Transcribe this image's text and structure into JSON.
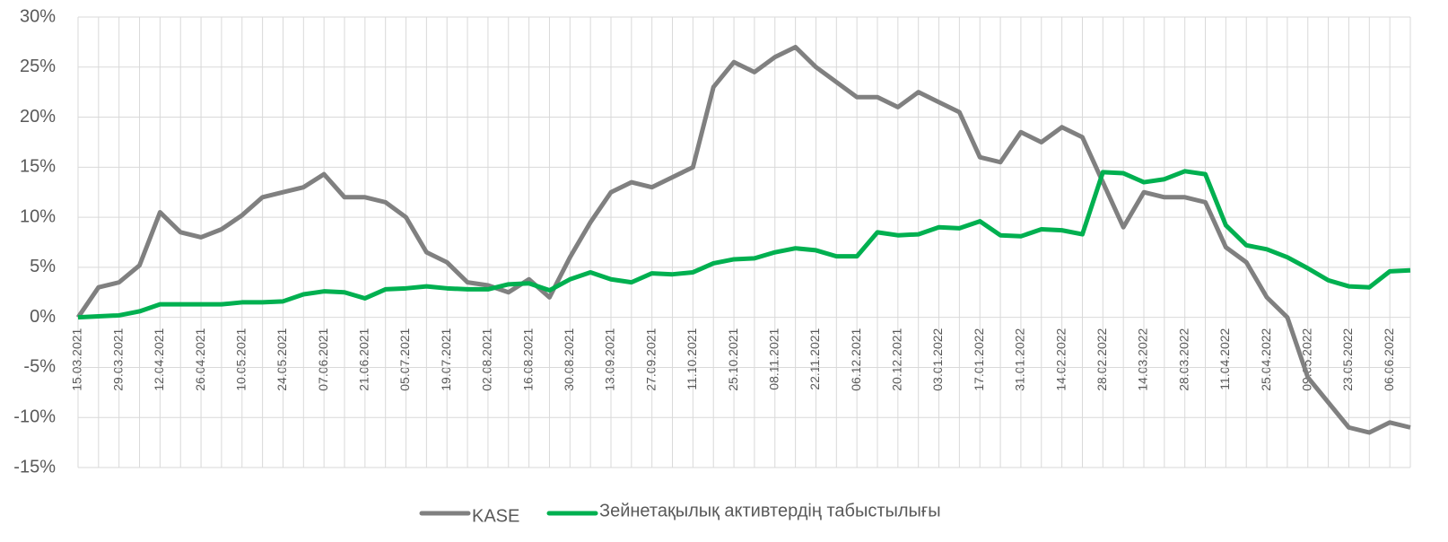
{
  "chart_data": {
    "type": "line",
    "categories": [
      "15.03.2021",
      null,
      "29.03.2021",
      null,
      "12.04.2021",
      null,
      "26.04.2021",
      null,
      "10.05.2021",
      null,
      "24.05.2021",
      null,
      "07.06.2021",
      null,
      "21.06.2021",
      null,
      "05.07.2021",
      null,
      "19.07.2021",
      null,
      "02.08.2021",
      null,
      "16.08.2021",
      null,
      "30.08.2021",
      null,
      "13.09.2021",
      null,
      "27.09.2021",
      null,
      "11.10.2021",
      null,
      "25.10.2021",
      null,
      "08.11.2021",
      null,
      "22.11.2021",
      null,
      "06.12.2021",
      null,
      "20.12.2021",
      null,
      "03.01.2022",
      null,
      "17.01.2022",
      null,
      "31.01.2022",
      null,
      "14.02.2022",
      null,
      "28.02.2022",
      null,
      "14.03.2022",
      null,
      "28.03.2022",
      null,
      "11.04.2022",
      null,
      "25.04.2022",
      null,
      "09.05.2022",
      null,
      "23.05.2022",
      null,
      "06.06.2022",
      null
    ],
    "series": [
      {
        "name": "KASE",
        "color": "#808080",
        "values": [
          0,
          3,
          3.5,
          5.2,
          10.5,
          8.5,
          8,
          8.8,
          10.2,
          12,
          12.5,
          13,
          14.3,
          12,
          12,
          11.5,
          10,
          6.5,
          5.5,
          3.5,
          3.2,
          2.5,
          3.8,
          2,
          6,
          9.5,
          12.5,
          13.5,
          13,
          14,
          15,
          23,
          25.5,
          24.5,
          26,
          27,
          25,
          23.5,
          22,
          22,
          21,
          22.5,
          21.5,
          20.5,
          16,
          15.5,
          18.5,
          17.5,
          19,
          18,
          13.5,
          9,
          12.5,
          12,
          12,
          11.5,
          7,
          5.5,
          2,
          0,
          -6,
          -8.5,
          -11,
          -11.5,
          -10.5,
          -11
        ]
      },
      {
        "name": "Зейнетақылық активтердің табыстылығы",
        "color": "#00b050",
        "values": [
          0,
          0.1,
          0.2,
          0.6,
          1.3,
          1.3,
          1.3,
          1.3,
          1.5,
          1.5,
          1.6,
          2.3,
          2.6,
          2.5,
          1.9,
          2.8,
          2.9,
          3.1,
          2.9,
          2.8,
          2.8,
          3.3,
          3.4,
          2.7,
          3.8,
          4.5,
          3.8,
          3.5,
          4.4,
          4.3,
          4.5,
          5.4,
          5.8,
          5.9,
          6.5,
          6.9,
          6.7,
          6.1,
          6.1,
          8.5,
          8.2,
          8.3,
          9.0,
          8.9,
          9.6,
          8.2,
          8.1,
          8.8,
          8.7,
          8.3,
          14.5,
          14.4,
          13.5,
          13.8,
          14.6,
          14.3,
          9.2,
          7.2,
          6.8,
          6.0,
          4.9,
          3.7,
          3.1,
          3.0,
          4.6,
          4.7
        ]
      }
    ],
    "ylim": [
      -15,
      30
    ],
    "yticks": [
      {
        "value": -15,
        "label": "-15%"
      },
      {
        "value": -10,
        "label": "-10%"
      },
      {
        "value": -5,
        "label": "-5%"
      },
      {
        "value": 0,
        "label": "0%"
      },
      {
        "value": 5,
        "label": "5%"
      },
      {
        "value": 10,
        "label": "10%"
      },
      {
        "value": 15,
        "label": "15%"
      },
      {
        "value": 20,
        "label": "20%"
      },
      {
        "value": 25,
        "label": "25%"
      },
      {
        "value": 30,
        "label": "30%"
      }
    ],
    "grid": true,
    "legend": "bottom"
  }
}
